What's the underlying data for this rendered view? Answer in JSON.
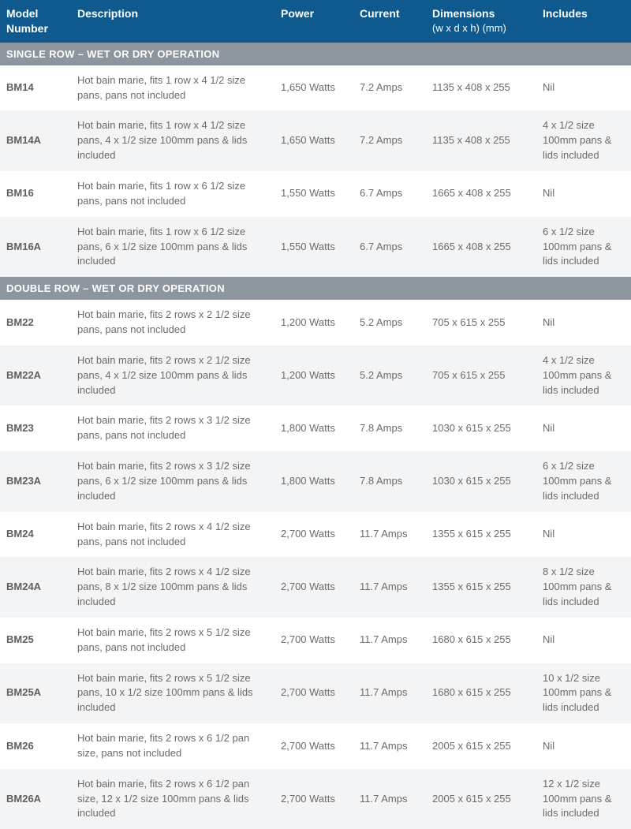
{
  "colors": {
    "header_bg": "#0e5a8f",
    "header_text": "#ffffff",
    "section_bg": "#8d959e",
    "section_text": "#ffffff",
    "row_even_bg": "#ffffff",
    "row_odd_bg": "#f3f4f6",
    "body_text": "#6b6b6b"
  },
  "columns": {
    "model": {
      "label": "Model Number"
    },
    "desc": {
      "label": "Description"
    },
    "power": {
      "label": "Power"
    },
    "current": {
      "label": "Current"
    },
    "dimensions": {
      "label": "Dimensions",
      "sub": "(w x d x h) (mm)"
    },
    "includes": {
      "label": "Includes"
    }
  },
  "sections": [
    {
      "title": "SINGLE ROW – WET OR DRY OPERATION",
      "rows": [
        {
          "model": "BM14",
          "desc": "Hot bain marie, fits 1 row x 4 1/2 size pans, pans not included",
          "power": "1,650 Watts",
          "current": "7.2 Amps",
          "dimensions": "1135 x 408 x 255",
          "includes": "Nil"
        },
        {
          "model": "BM14A",
          "desc": "Hot bain marie, fits 1 row x 4 1/2 size pans, 4 x 1/2 size 100mm pans & lids included",
          "power": "1,650 Watts",
          "current": "7.2 Amps",
          "dimensions": "1135 x 408 x 255",
          "includes": "4 x 1/2 size 100mm pans & lids included"
        },
        {
          "model": "BM16",
          "desc": "Hot bain marie, fits 1 row x 6 1/2 size pans, pans not included",
          "power": "1,550 Watts",
          "current": "6.7 Amps",
          "dimensions": "1665 x 408 x 255",
          "includes": "Nil"
        },
        {
          "model": "BM16A",
          "desc": "Hot bain marie, fits 1 row x 6 1/2 size pans, 6 x 1/2 size 100mm pans & lids included",
          "power": "1,550 Watts",
          "current": "6.7 Amps",
          "dimensions": "1665 x 408 x 255",
          "includes": "6 x 1/2 size 100mm pans & lids included"
        }
      ]
    },
    {
      "title": "DOUBLE ROW – WET OR DRY OPERATION",
      "rows": [
        {
          "model": "BM22",
          "desc": "Hot bain marie, fits 2 rows x 2 1/2 size pans, pans not included",
          "power": "1,200 Watts",
          "current": "5.2 Amps",
          "dimensions": "705 x 615 x 255",
          "includes": "Nil"
        },
        {
          "model": "BM22A",
          "desc": "Hot bain marie, fits 2 rows x 2 1/2 size pans, 4 x 1/2 size 100mm pans & lids included",
          "power": "1,200 Watts",
          "current": "5.2 Amps",
          "dimensions": "705 x 615 x 255",
          "includes": "4 x 1/2 size 100mm pans & lids included"
        },
        {
          "model": "BM23",
          "desc": "Hot bain marie, fits 2 rows x 3 1/2 size pans, pans not included",
          "power": "1,800 Watts",
          "current": "7.8 Amps",
          "dimensions": "1030 x 615 x 255",
          "includes": "Nil"
        },
        {
          "model": "BM23A",
          "desc": "Hot bain marie, fits 2 rows x 3 1/2 size pans, 6 x 1/2 size 100mm pans & lids included",
          "power": "1,800 Watts",
          "current": "7.8 Amps",
          "dimensions": "1030 x 615 x 255",
          "includes": "6 x 1/2 size 100mm pans & lids included"
        },
        {
          "model": "BM24",
          "desc": "Hot bain marie, fits 2 rows x 4 1/2 size pans, pans not included",
          "power": "2,700 Watts",
          "current": "11.7 Amps",
          "dimensions": "1355 x 615 x 255",
          "includes": "Nil"
        },
        {
          "model": "BM24A",
          "desc": "Hot bain marie, fits 2 rows x 4 1/2 size pans, 8 x 1/2 size 100mm pans & lids included",
          "power": "2,700 Watts",
          "current": "11.7 Amps",
          "dimensions": "1355 x 615 x 255",
          "includes": "8 x 1/2 size 100mm pans & lids included"
        },
        {
          "model": "BM25",
          "desc": "Hot bain marie, fits 2 rows x 5 1/2 size pans, pans not included",
          "power": "2,700 Watts",
          "current": "11.7 Amps",
          "dimensions": "1680 x 615 x 255",
          "includes": "Nil"
        },
        {
          "model": "BM25A",
          "desc": "Hot bain marie, fits 2 rows x 5 1/2 size pans, 10 x 1/2 size 100mm pans & lids included",
          "power": "2,700 Watts",
          "current": "11.7 Amps",
          "dimensions": "1680 x 615 x 255",
          "includes": "10 x 1/2 size 100mm pans & lids included"
        },
        {
          "model": "BM26",
          "desc": "Hot bain marie, fits 2 rows x 6 1/2 pan size, pans not included",
          "power": "2,700 Watts",
          "current": "11.7 Amps",
          "dimensions": "2005 x 615 x 255",
          "includes": "Nil"
        },
        {
          "model": "BM26A",
          "desc": "Hot bain marie, fits 2 rows x 6 1/2 pan size, 12 x 1/2 size 100mm pans & lids included",
          "power": "2,700 Watts",
          "current": "11.7 Amps",
          "dimensions": "2005 x 615 x 255",
          "includes": "12 x 1/2 size 100mm pans & lids included"
        }
      ]
    }
  ]
}
